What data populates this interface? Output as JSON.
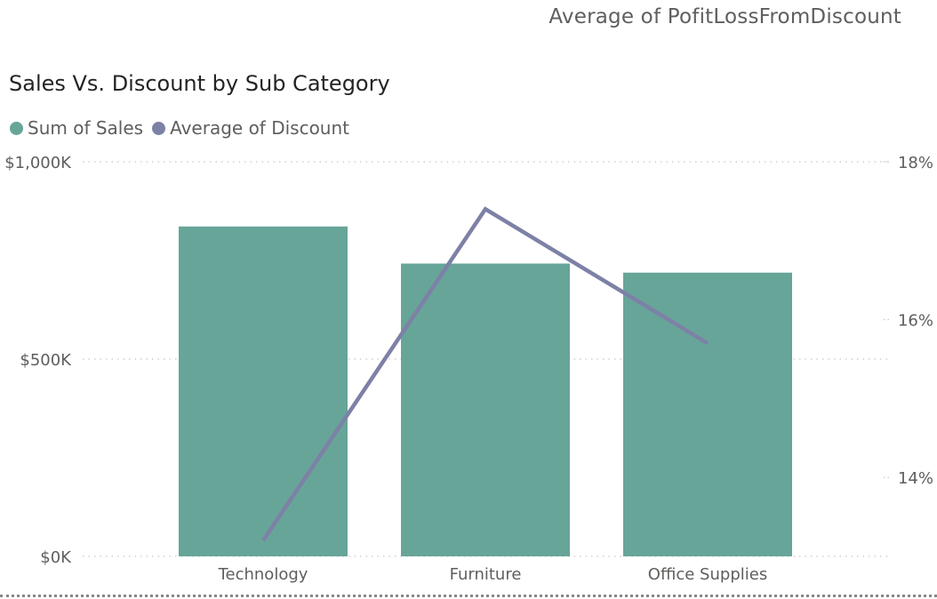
{
  "header": {
    "visual_title": "Average of PofitLossFromDiscount"
  },
  "chart_data": {
    "type": "bar",
    "title": "Sales Vs. Discount by Sub Category",
    "categories": [
      "Technology",
      "Furniture",
      "Office Supplies"
    ],
    "series": [
      {
        "name": "Sum of Sales",
        "type": "bar",
        "axis": "left",
        "color": "#67a599",
        "values": [
          836000,
          742000,
          719000
        ]
      },
      {
        "name": "Average of Discount",
        "type": "line",
        "axis": "right",
        "color": "#7d81a6",
        "values": [
          0.132,
          0.174,
          0.157
        ]
      }
    ],
    "y_left": {
      "range": [
        0,
        1000000
      ],
      "ticks": [
        0,
        500000,
        1000000
      ],
      "tick_labels": [
        "$0K",
        "$500K",
        "$1,000K"
      ]
    },
    "y_right": {
      "range": [
        0.13,
        0.18
      ],
      "ticks": [
        0.14,
        0.16,
        0.18
      ],
      "tick_labels": [
        "14%",
        "16%",
        "18%"
      ]
    },
    "grid": true,
    "grid_style": "dotted",
    "legend_position": "top-left"
  }
}
